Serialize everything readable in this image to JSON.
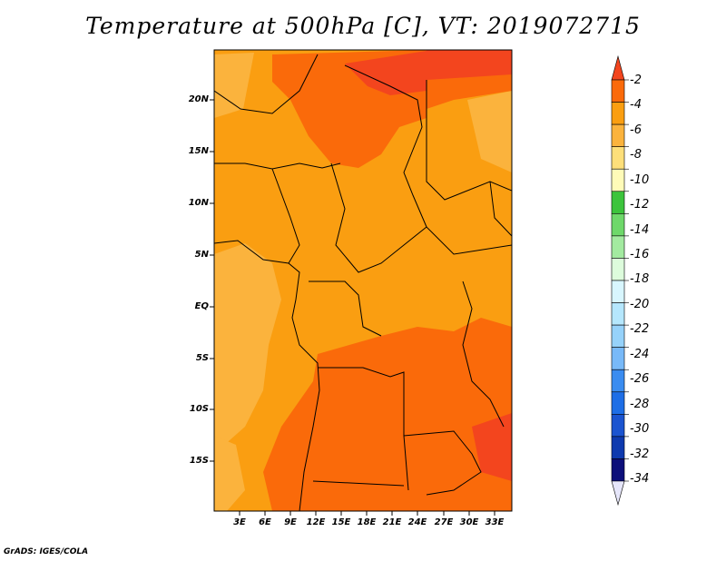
{
  "title": "Temperature at 500hPa [C], VT: 2019072715",
  "credit": "GrADS: IGES/COLA",
  "map": {
    "y_axis_labels": [
      "20N",
      "15N",
      "10N",
      "5N",
      "EQ",
      "5S",
      "10S",
      "15S"
    ],
    "x_axis_labels": [
      "3E",
      "6E",
      "9E",
      "12E",
      "15E",
      "18E",
      "21E",
      "24E",
      "27E",
      "30E",
      "33E"
    ],
    "colors": {
      "field_background": "#fa9e11",
      "warm_core": "#fa6a0a",
      "warmest": "#f3451e",
      "cool_patch": "#fbb33d",
      "boundary": "#000000"
    }
  },
  "colorbar": {
    "labels": [
      "-2",
      "-4",
      "-6",
      "-8",
      "-10",
      "-12",
      "-14",
      "-16",
      "-18",
      "-20",
      "-22",
      "-24",
      "-26",
      "-28",
      "-30",
      "-32",
      "-34"
    ],
    "colors": [
      "#f3451e",
      "#fa6a0a",
      "#fa9e11",
      "#fbb33d",
      "#fddf7a",
      "#fffbb8",
      "#3cc43c",
      "#6ed86a",
      "#a3eaa0",
      "#ddfcdc",
      "#d8f6fe",
      "#b5e7fd",
      "#96d2fa",
      "#78b9f8",
      "#3a8cf0",
      "#1e6ee6",
      "#1b54d0",
      "#0e3aaf",
      "#0c0f7a",
      "#e6e6fa"
    ]
  }
}
